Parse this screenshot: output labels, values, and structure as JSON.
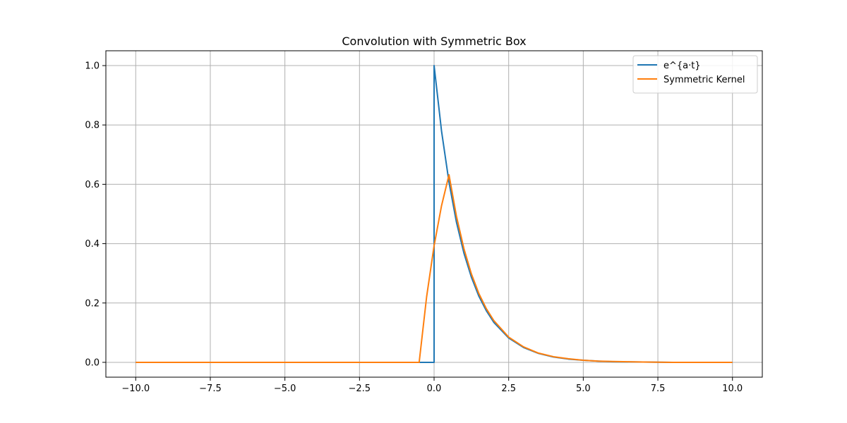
{
  "chart_data": {
    "type": "line",
    "title": "Convolution with Symmetric Box",
    "xlabel": "",
    "ylabel": "",
    "xlim": [
      -11.0,
      11.0
    ],
    "ylim": [
      -0.05,
      1.05
    ],
    "xticks": [
      -10.0,
      -7.5,
      -5.0,
      -2.5,
      0.0,
      2.5,
      5.0,
      7.5,
      10.0
    ],
    "xtick_labels": [
      "−10.0",
      "−7.5",
      "−5.0",
      "−2.5",
      "0.0",
      "2.5",
      "5.0",
      "7.5",
      "10.0"
    ],
    "yticks": [
      0.0,
      0.2,
      0.4,
      0.6,
      0.8,
      1.0
    ],
    "ytick_labels": [
      "0.0",
      "0.2",
      "0.4",
      "0.6",
      "0.8",
      "1.0"
    ],
    "grid": true,
    "legend_position": "top-right",
    "series": [
      {
        "name": "e^{a·t}",
        "color": "#1f77b4",
        "x": [
          -10.0,
          0.0,
          0.0,
          0.25,
          0.5,
          0.75,
          1.0,
          1.25,
          1.5,
          1.75,
          2.0,
          2.5,
          3.0,
          3.5,
          4.0,
          4.5,
          5.0,
          5.5,
          6.0,
          7.0,
          8.0,
          9.0,
          10.0
        ],
        "y": [
          0.0,
          0.0,
          1.0,
          0.779,
          0.607,
          0.472,
          0.368,
          0.287,
          0.223,
          0.174,
          0.135,
          0.082,
          0.05,
          0.03,
          0.018,
          0.011,
          0.007,
          0.004,
          0.002,
          0.001,
          0.0,
          0.0,
          0.0
        ]
      },
      {
        "name": "Symmetric Kernel",
        "color": "#ff7f0e",
        "x": [
          -10.0,
          -0.5,
          -0.25,
          0.0,
          0.25,
          0.5,
          0.75,
          1.0,
          1.25,
          1.5,
          1.75,
          2.0,
          2.5,
          3.0,
          3.5,
          4.0,
          4.5,
          5.0,
          5.5,
          6.0,
          7.0,
          8.0,
          9.0,
          10.0
        ],
        "y": [
          0.0,
          0.0,
          0.221,
          0.393,
          0.528,
          0.632,
          0.492,
          0.383,
          0.298,
          0.232,
          0.181,
          0.141,
          0.085,
          0.052,
          0.031,
          0.019,
          0.012,
          0.007,
          0.004,
          0.003,
          0.001,
          0.0,
          0.0,
          0.0
        ]
      }
    ]
  }
}
